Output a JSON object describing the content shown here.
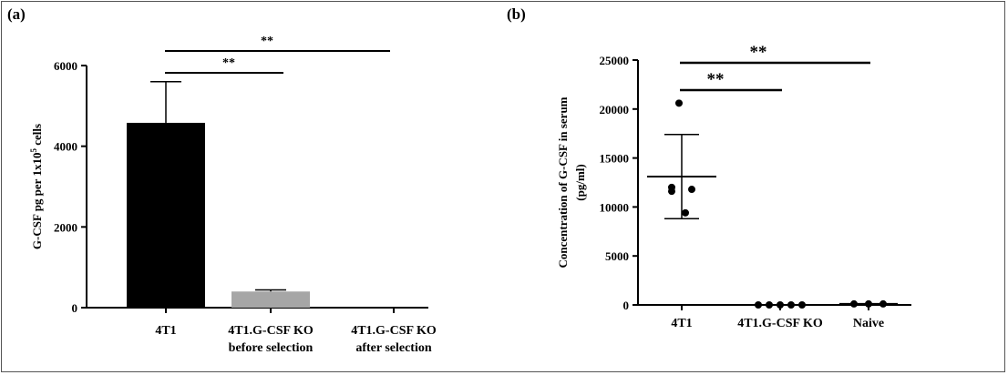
{
  "figure": {
    "label_a": "(a)",
    "label_b": "(b)"
  },
  "chart_data": [
    {
      "type": "bar",
      "panel": "(a)",
      "categories": [
        [
          "4T1"
        ],
        [
          "4T1.G-CSF KO",
          "before selection"
        ],
        [
          "4T1.G-CSF KO",
          "after selection"
        ]
      ],
      "values": [
        4580,
        400,
        0
      ],
      "error": [
        1020,
        40,
        0
      ],
      "colors": [
        "#000000",
        "#a6a6a6",
        "#000000"
      ],
      "ylabel_prefix": "G-CSF pg per 1x10",
      "ylabel_sup": "5",
      "ylabel_suffix": " cells",
      "ylim": [
        0,
        6000
      ],
      "yticks": [
        0,
        2000,
        4000,
        6000
      ],
      "significance": [
        {
          "from": 0,
          "to": 1,
          "label": "**"
        },
        {
          "from": 0,
          "to": 2,
          "label": "**"
        }
      ]
    },
    {
      "type": "scatter",
      "panel": "(b)",
      "categories": [
        "4T1",
        "4T1.G-CSF KO",
        "Naive"
      ],
      "points": [
        [
          20600,
          12000,
          11800,
          11600,
          9400
        ],
        [
          0,
          0,
          0,
          0,
          0
        ],
        [
          100,
          100,
          100
        ]
      ],
      "mean": [
        13100,
        0,
        100
      ],
      "sd": [
        4300,
        0,
        0
      ],
      "ylabel": [
        "Concentration of G-CSF in serum",
        "(pg/ml)"
      ],
      "ylim": [
        0,
        25000
      ],
      "yticks": [
        0,
        5000,
        10000,
        15000,
        20000,
        25000
      ],
      "significance": [
        {
          "from": 0,
          "to": 1,
          "label": "**"
        },
        {
          "from": 0,
          "to": 2,
          "label": "**"
        }
      ]
    }
  ]
}
